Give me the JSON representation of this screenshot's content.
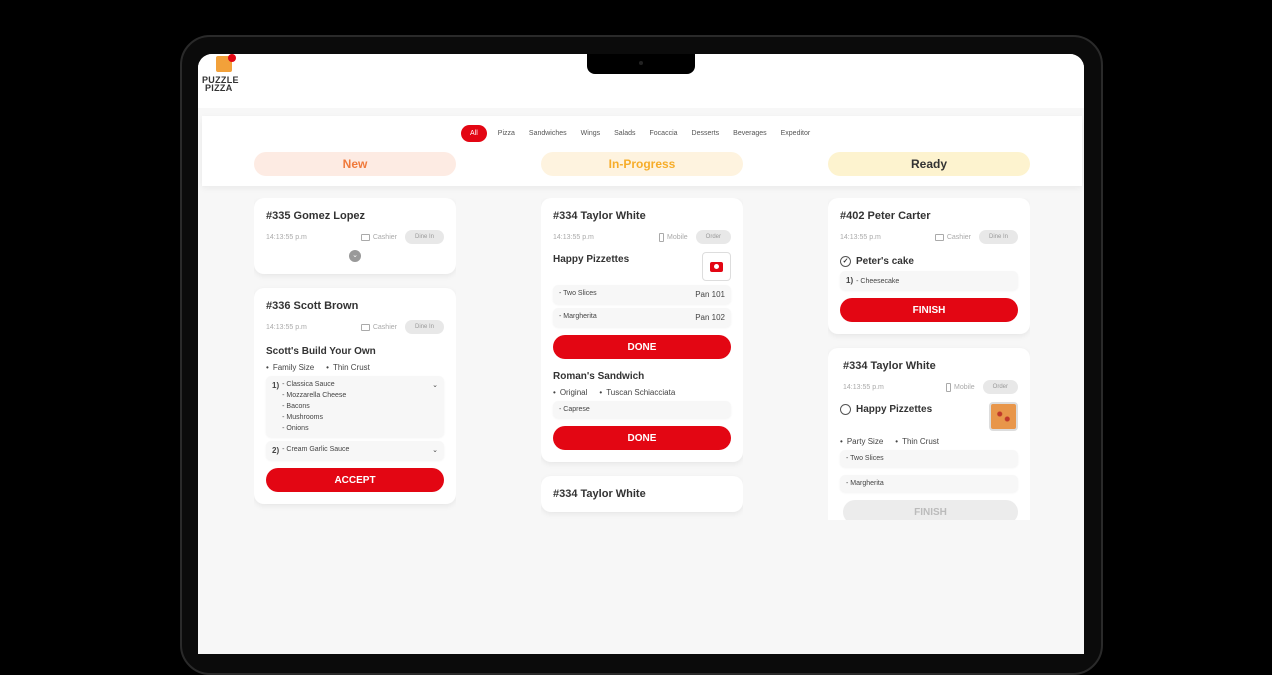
{
  "app": {
    "logo_text": [
      "PUZZLE",
      "PIZZA"
    ]
  },
  "nav": {
    "tabs": [
      "All",
      "Pizza",
      "Sandwiches",
      "Wings",
      "Salads",
      "Focaccia",
      "Desserts",
      "Beverages",
      "Expeditor"
    ],
    "active": "All"
  },
  "columns": [
    {
      "label": "New",
      "bg": "#fdebe3",
      "color": "#f07a3c"
    },
    {
      "label": "In-Progress",
      "bg": "#fef3df",
      "color": "#f6ad2a"
    },
    {
      "label": "Ready",
      "bg": "#fdf3cf",
      "color": "#333333"
    }
  ],
  "colors": {
    "accent": "#e30613"
  },
  "orders": {
    "o335": {
      "title": "#335  Gomez Lopez",
      "time": "14:13:55 p.m",
      "source": "Cashier",
      "type": "Dine In"
    },
    "o336": {
      "title": "#336  Scott Brown",
      "time": "14:13:55 p.m",
      "source": "Cashier",
      "type": "Dine In",
      "item": "Scott's Build Your Own",
      "options": [
        "Family Size",
        "Thin Crust"
      ],
      "group1": {
        "num": "1)",
        "subs": [
          "- Classica Sauce",
          "- Mozzarella Cheese",
          "- Bacons",
          "- Mushrooms",
          "- Onions"
        ]
      },
      "group2": {
        "num": "2)",
        "subs": [
          "- Cream Garlic Sauce"
        ]
      },
      "button": "ACCEPT"
    },
    "o334a": {
      "title": "#334  Taylor White",
      "time": "14:13:55 p.m",
      "source": "Mobile",
      "type": "Order",
      "item1": "Happy Pizzettes",
      "rows1": [
        {
          "name": "- Two Slices",
          "pan": "Pan 101"
        },
        {
          "name": "- Margherita",
          "pan": "Pan 102"
        }
      ],
      "button1": "DONE",
      "item2": "Roman's Sandwich",
      "options2": [
        "Original",
        "Tuscan Schiacciata"
      ],
      "rows2": [
        "- Caprese"
      ],
      "button2": "DONE"
    },
    "o334b": {
      "title": "#334  Taylor White"
    },
    "o402": {
      "title": "#402  Peter Carter",
      "time": "14:13:55 p.m",
      "source": "Cashier",
      "type": "Dine In",
      "item": "Peter's cake",
      "row_num": "1)",
      "row": "- Cheesecake",
      "button": "FINISH"
    },
    "o334c": {
      "title": "#334  Taylor White",
      "time": "14:13:55 p.m",
      "source": "Mobile",
      "type": "Order",
      "item": "Happy Pizzettes",
      "options": [
        "Party Size",
        "Thin Crust"
      ],
      "rows": [
        "- Two Slices",
        "- Margherita"
      ],
      "button": "FINISH"
    }
  }
}
